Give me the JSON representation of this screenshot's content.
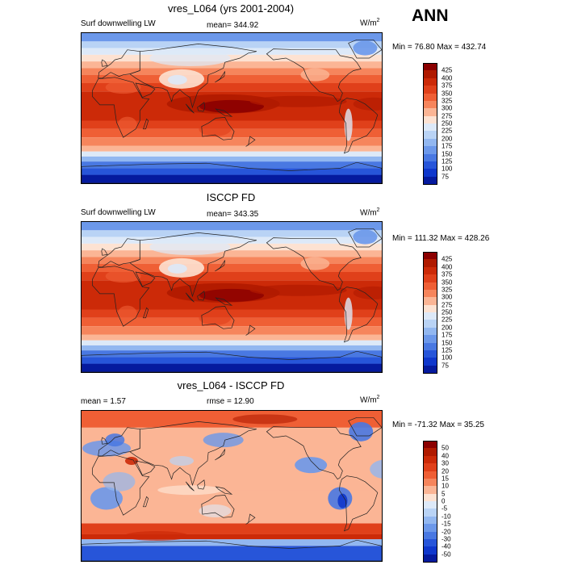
{
  "season": "ANN",
  "panels": [
    {
      "title": "vres_L064 (yrs 2001-2004)",
      "left_label": "Surf downwelling LW",
      "center_label": "mean= 344.92",
      "units": "W/m",
      "units_sup": "2",
      "minmax": "Min =  76.80 Max = 432.74",
      "kind": "abs",
      "levels": [
        "425",
        "400",
        "375",
        "350",
        "325",
        "300",
        "275",
        "250",
        "225",
        "200",
        "175",
        "150",
        "125",
        "100",
        "75"
      ],
      "colors": [
        "#8b0000",
        "#b01a00",
        "#cc2a08",
        "#e0401a",
        "#ef5f35",
        "#f6855c",
        "#fbb595",
        "#fde2d2",
        "#dde9f8",
        "#b9d3f5",
        "#92b7f0",
        "#6c98ea",
        "#4978e2",
        "#2755d9",
        "#0f37cc",
        "#051a9e"
      ]
    },
    {
      "title": "ISCCP FD",
      "left_label": "Surf downwelling LW",
      "center_label": "mean= 343.35",
      "units": "W/m",
      "units_sup": "2",
      "minmax": "Min = 111.32 Max = 428.26",
      "kind": "abs",
      "levels": [
        "425",
        "400",
        "375",
        "350",
        "325",
        "300",
        "275",
        "250",
        "225",
        "200",
        "175",
        "150",
        "125",
        "100",
        "75"
      ],
      "colors": [
        "#8b0000",
        "#b01a00",
        "#cc2a08",
        "#e0401a",
        "#ef5f35",
        "#f6855c",
        "#fbb595",
        "#fde2d2",
        "#dde9f8",
        "#b9d3f5",
        "#92b7f0",
        "#6c98ea",
        "#4978e2",
        "#2755d9",
        "#0f37cc",
        "#051a9e"
      ]
    },
    {
      "title": "vres_L064 - ISCCP FD",
      "left_label": "mean =   1.57",
      "center_label": "rmse =  12.90",
      "units": "W/m",
      "units_sup": "2",
      "minmax": "Min = -71.32 Max =  35.25",
      "kind": "diff",
      "levels": [
        "50",
        "40",
        "30",
        "20",
        "15",
        "10",
        "5",
        "0",
        "-5",
        "-10",
        "-15",
        "-20",
        "-30",
        "-40",
        "-50"
      ],
      "colors": [
        "#8b0000",
        "#b01a00",
        "#cc2a08",
        "#e0401a",
        "#ef5f35",
        "#f6855c",
        "#fbb595",
        "#fde2d2",
        "#dde9f8",
        "#b9d3f5",
        "#92b7f0",
        "#6c98ea",
        "#4978e2",
        "#2755d9",
        "#0f37cc",
        "#051a9e"
      ]
    }
  ]
}
